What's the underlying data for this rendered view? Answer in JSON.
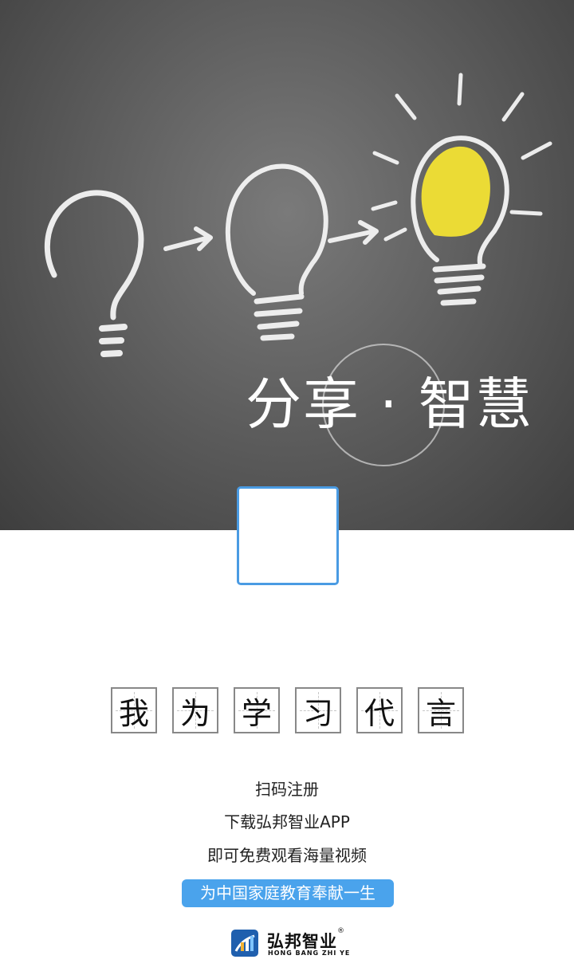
{
  "hero": {
    "title": "分享 · 智慧",
    "accent_bulb_color": "#f2e233"
  },
  "qr_code": {
    "frame_color": "#4a9be3"
  },
  "slogan": {
    "chars": [
      "我",
      "为",
      "学",
      "习",
      "代",
      "言"
    ]
  },
  "info": {
    "line1": "扫码注册",
    "line2": "下载弘邦智业APP",
    "line3": "即可免费观看海量视频"
  },
  "tagline": {
    "text": "为中国家庭教育奉献一生",
    "color": "#4aa3ec"
  },
  "brand": {
    "name_cn": "弘邦智业",
    "name_en": "HONG BANG ZHI YE",
    "registered_mark": "®"
  }
}
